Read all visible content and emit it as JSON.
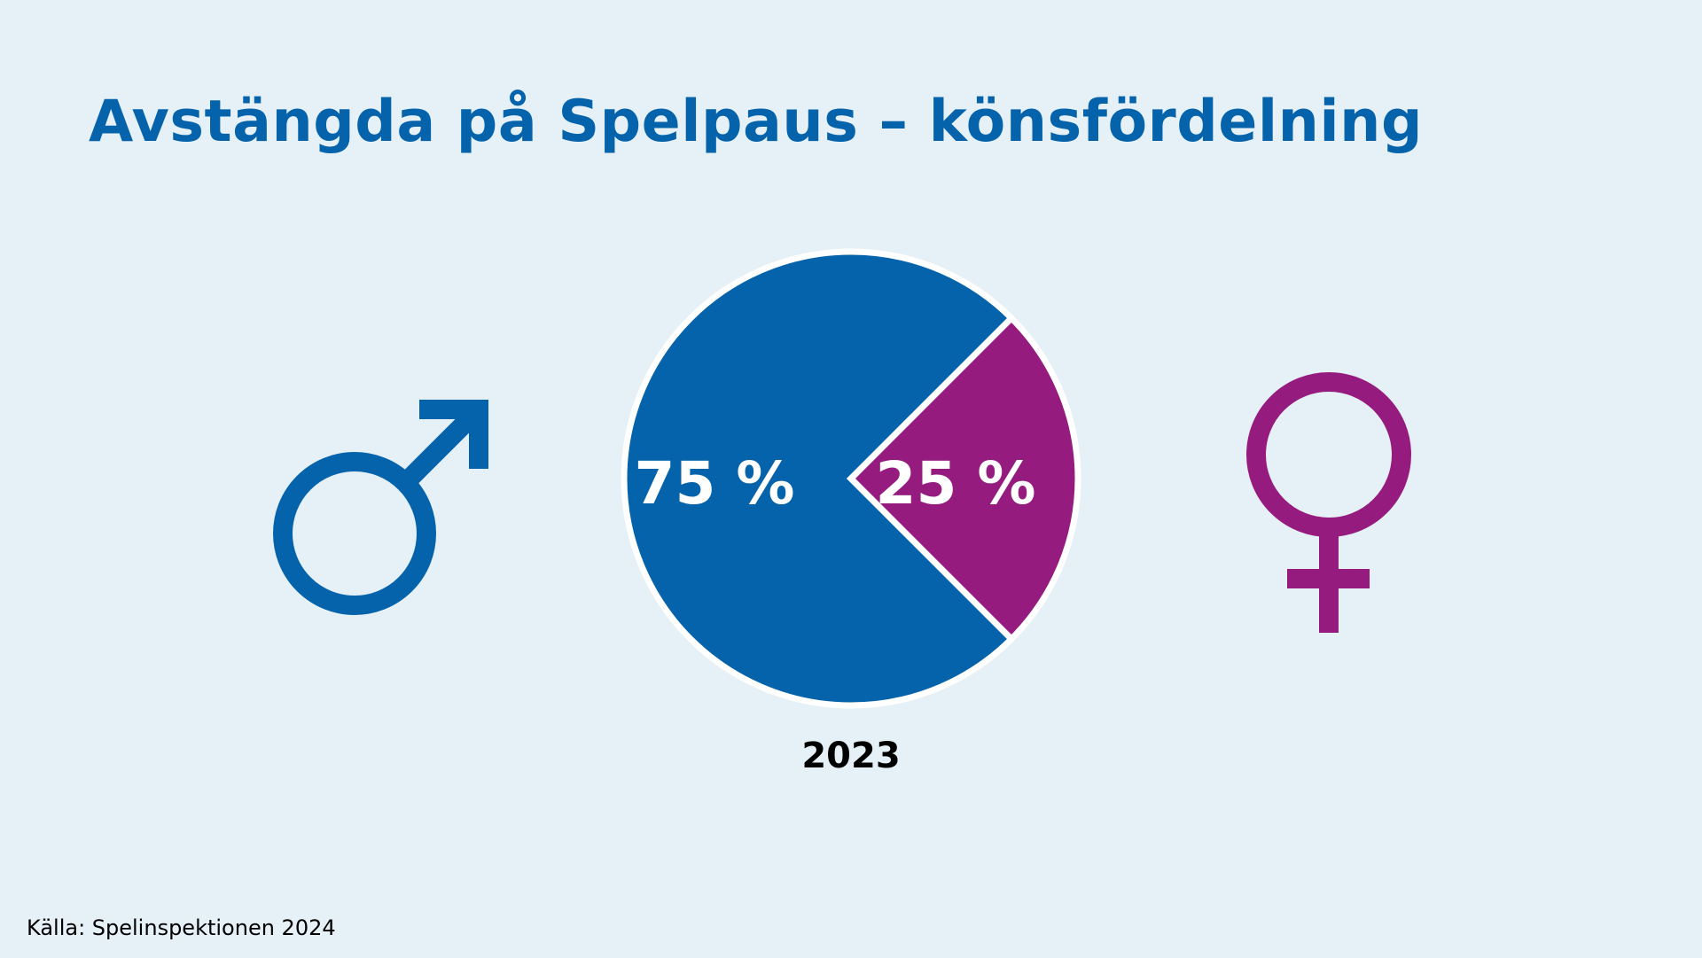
{
  "title": "Avstängda på Spelpaus – könsfördelning",
  "source": "Källa: Spelinspektionen 2024",
  "icons": {
    "male": "male-symbol-icon",
    "female": "female-symbol-icon"
  },
  "colors": {
    "background": "#e5f0f7",
    "male": "#0563ab",
    "female": "#951c7e",
    "title": "#0563ab"
  },
  "chart_data": {
    "type": "pie",
    "title": "Avstängda på Spelpaus – könsfördelning",
    "categories": [
      "Män",
      "Kvinnor"
    ],
    "values": [
      75,
      25
    ],
    "labels": [
      "75 %",
      "25 %"
    ],
    "colors": [
      "#0563ab",
      "#951c7e"
    ],
    "xlabel": "2023"
  }
}
